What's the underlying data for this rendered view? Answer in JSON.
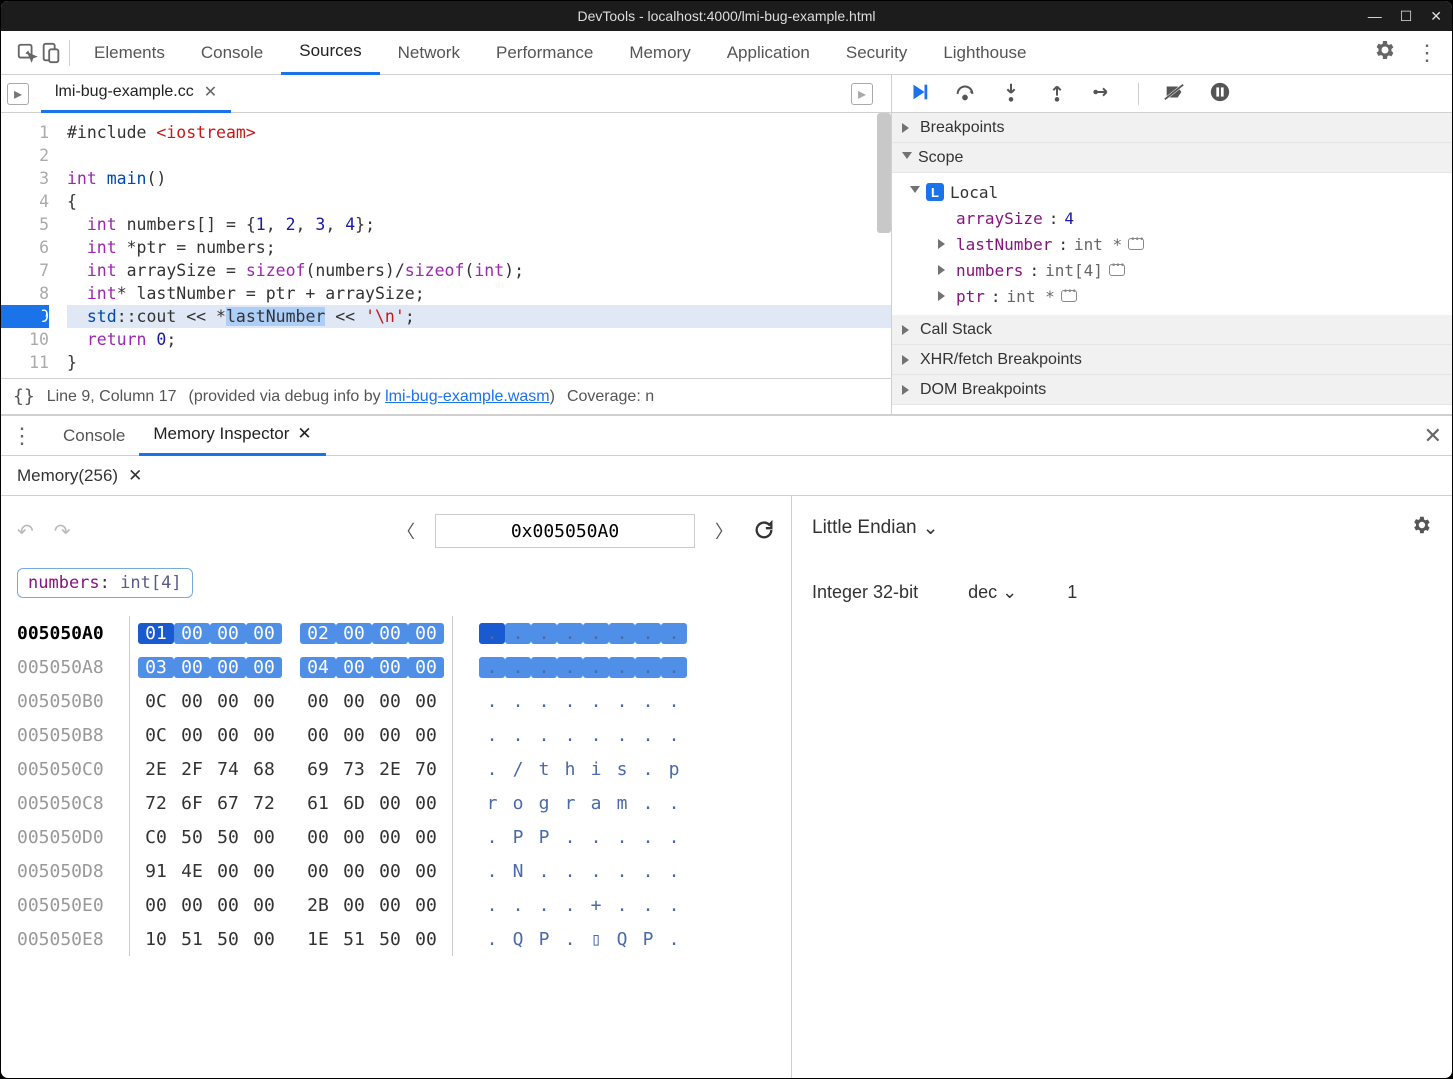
{
  "window_title": "DevTools - localhost:4000/lmi-bug-example.html",
  "main_tabs": [
    "Elements",
    "Console",
    "Sources",
    "Network",
    "Performance",
    "Memory",
    "Application",
    "Security",
    "Lighthouse"
  ],
  "main_tab_active": "Sources",
  "file_tab": "lmi-bug-example.cc",
  "highlighted_line": 9,
  "status": {
    "braces": "{}",
    "pos": "Line 9, Column 17",
    "via": "(provided via debug info by ",
    "link": "lmi-bug-example.wasm",
    "after": ")",
    "coverage": "Coverage: n"
  },
  "panels": {
    "breakpoints": "Breakpoints",
    "scope": "Scope",
    "callstack": "Call Stack",
    "xhr": "XHR/fetch Breakpoints",
    "dom": "DOM Breakpoints"
  },
  "scope": {
    "local": "Local",
    "vars": [
      {
        "name": "arraySize",
        "sep": ": ",
        "type": "",
        "val": "4",
        "reveal": false,
        "expand": false
      },
      {
        "name": "lastNumber",
        "sep": ": ",
        "type": "int *",
        "val": "",
        "reveal": true,
        "expand": true
      },
      {
        "name": "numbers",
        "sep": ": ",
        "type": "int[4]",
        "val": "",
        "reveal": true,
        "expand": true
      },
      {
        "name": "ptr",
        "sep": ": ",
        "type": "int *",
        "val": "",
        "reveal": true,
        "expand": true
      }
    ]
  },
  "drawer": {
    "console": "Console",
    "mem_insp": "Memory Inspector",
    "mem_tab": "Memory(256)"
  },
  "memory": {
    "address": "0x005050A0",
    "chip_name": "numbers",
    "chip_type": "int[4]",
    "endian": "Little Endian",
    "int_label": "Integer 32-bit",
    "int_fmt": "dec",
    "int_val": "1",
    "rows": [
      {
        "addr": "005050A0",
        "b": [
          "01",
          "00",
          "00",
          "00",
          "02",
          "00",
          "00",
          "00"
        ],
        "a": [
          ".",
          ".",
          ".",
          ".",
          ".",
          ".",
          ".",
          "."
        ],
        "hl": true,
        "curByte": 0
      },
      {
        "addr": "005050A8",
        "b": [
          "03",
          "00",
          "00",
          "00",
          "04",
          "00",
          "00",
          "00"
        ],
        "a": [
          ".",
          ".",
          ".",
          ".",
          ".",
          ".",
          ".",
          "."
        ],
        "hl": true
      },
      {
        "addr": "005050B0",
        "b": [
          "0C",
          "00",
          "00",
          "00",
          "00",
          "00",
          "00",
          "00"
        ],
        "a": [
          ".",
          ".",
          ".",
          ".",
          ".",
          ".",
          ".",
          "."
        ]
      },
      {
        "addr": "005050B8",
        "b": [
          "0C",
          "00",
          "00",
          "00",
          "00",
          "00",
          "00",
          "00"
        ],
        "a": [
          ".",
          ".",
          ".",
          ".",
          ".",
          ".",
          ".",
          "."
        ]
      },
      {
        "addr": "005050C0",
        "b": [
          "2E",
          "2F",
          "74",
          "68",
          "69",
          "73",
          "2E",
          "70"
        ],
        "a": [
          ".",
          "/",
          "t",
          "h",
          "i",
          "s",
          ".",
          "p"
        ]
      },
      {
        "addr": "005050C8",
        "b": [
          "72",
          "6F",
          "67",
          "72",
          "61",
          "6D",
          "00",
          "00"
        ],
        "a": [
          "r",
          "o",
          "g",
          "r",
          "a",
          "m",
          ".",
          "."
        ]
      },
      {
        "addr": "005050D0",
        "b": [
          "C0",
          "50",
          "50",
          "00",
          "00",
          "00",
          "00",
          "00"
        ],
        "a": [
          ".",
          "P",
          "P",
          ".",
          ".",
          ".",
          ".",
          "."
        ]
      },
      {
        "addr": "005050D8",
        "b": [
          "91",
          "4E",
          "00",
          "00",
          "00",
          "00",
          "00",
          "00"
        ],
        "a": [
          ".",
          "N",
          ".",
          ".",
          ".",
          ".",
          ".",
          "."
        ]
      },
      {
        "addr": "005050E0",
        "b": [
          "00",
          "00",
          "00",
          "00",
          "2B",
          "00",
          "00",
          "00"
        ],
        "a": [
          ".",
          ".",
          ".",
          ".",
          "+",
          ".",
          ".",
          "."
        ]
      },
      {
        "addr": "005050E8",
        "b": [
          "10",
          "51",
          "50",
          "00",
          "1E",
          "51",
          "50",
          "00"
        ],
        "a": [
          ".",
          "Q",
          "P",
          ".",
          "▯",
          "Q",
          "P",
          "."
        ]
      }
    ]
  }
}
